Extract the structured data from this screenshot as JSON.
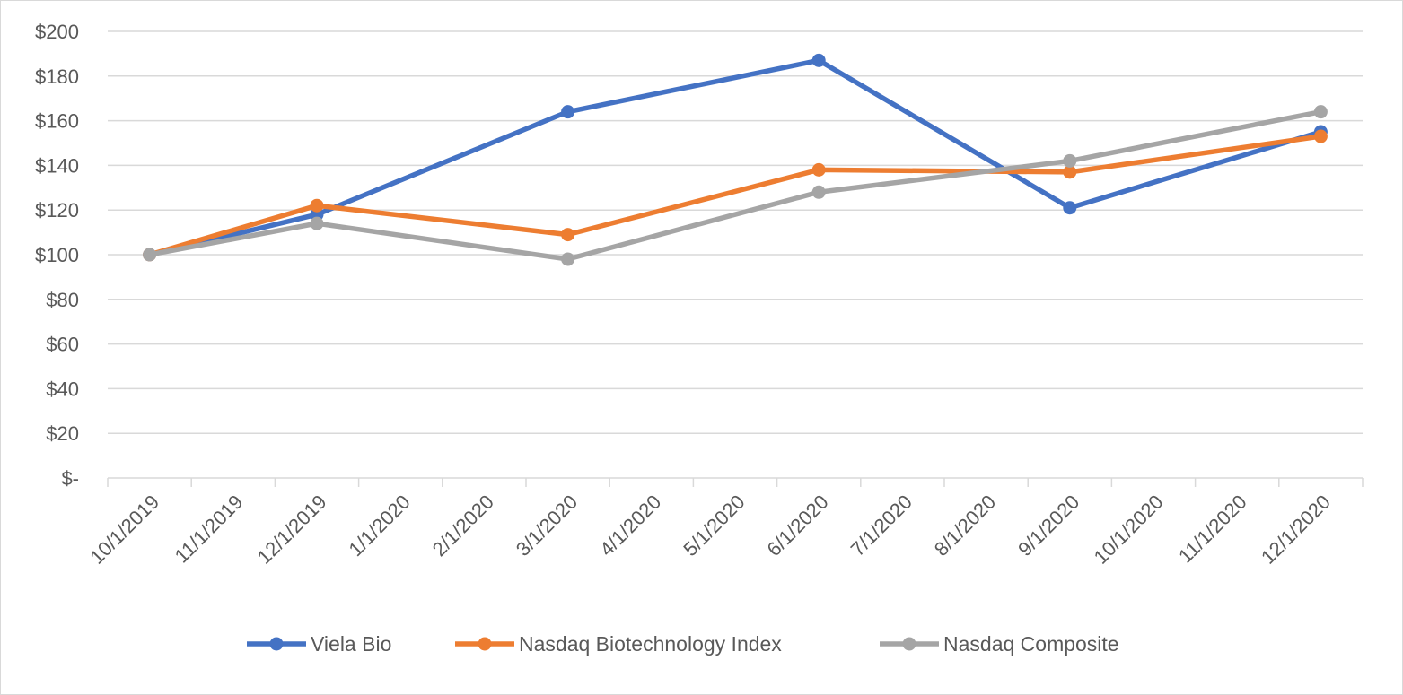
{
  "chart_data": {
    "type": "line",
    "title": "",
    "xlabel": "",
    "ylabel": "",
    "ylim": [
      0,
      200
    ],
    "y_ticks": [
      {
        "value": 0,
        "label": "$-"
      },
      {
        "value": 20,
        "label": "$20"
      },
      {
        "value": 40,
        "label": "$40"
      },
      {
        "value": 60,
        "label": "$60"
      },
      {
        "value": 80,
        "label": "$80"
      },
      {
        "value": 100,
        "label": "$100"
      },
      {
        "value": 120,
        "label": "$120"
      },
      {
        "value": 140,
        "label": "$140"
      },
      {
        "value": 160,
        "label": "$160"
      },
      {
        "value": 180,
        "label": "$180"
      },
      {
        "value": 200,
        "label": "$200"
      }
    ],
    "x_tick_labels": [
      "10/1/2019",
      "11/1/2019",
      "12/1/2019",
      "1/1/2020",
      "2/1/2020",
      "3/1/2020",
      "4/1/2020",
      "5/1/2020",
      "6/1/2020",
      "7/1/2020",
      "8/1/2020",
      "9/1/2020",
      "10/1/2020",
      "11/1/2020",
      "12/1/2020"
    ],
    "grid": true,
    "legend_position": "bottom",
    "series": [
      {
        "name": "Viela Bio",
        "color": "#4472c4",
        "points": [
          {
            "x": "10/1/2019",
            "y": 100
          },
          {
            "x": "12/1/2019",
            "y": 118
          },
          {
            "x": "3/1/2020",
            "y": 164
          },
          {
            "x": "6/1/2020",
            "y": 187
          },
          {
            "x": "9/1/2020",
            "y": 121
          },
          {
            "x": "12/1/2020",
            "y": 155
          }
        ]
      },
      {
        "name": "Nasdaq Biotechnology Index",
        "color": "#ed7d31",
        "points": [
          {
            "x": "10/1/2019",
            "y": 100
          },
          {
            "x": "12/1/2019",
            "y": 122
          },
          {
            "x": "3/1/2020",
            "y": 109
          },
          {
            "x": "6/1/2020",
            "y": 138
          },
          {
            "x": "9/1/2020",
            "y": 137
          },
          {
            "x": "12/1/2020",
            "y": 153
          }
        ]
      },
      {
        "name": "Nasdaq Composite",
        "color": "#a5a5a5",
        "points": [
          {
            "x": "10/1/2019",
            "y": 100
          },
          {
            "x": "12/1/2019",
            "y": 114
          },
          {
            "x": "3/1/2020",
            "y": 98
          },
          {
            "x": "6/1/2020",
            "y": 128
          },
          {
            "x": "9/1/2020",
            "y": 142
          },
          {
            "x": "12/1/2020",
            "y": 164
          }
        ]
      }
    ]
  }
}
